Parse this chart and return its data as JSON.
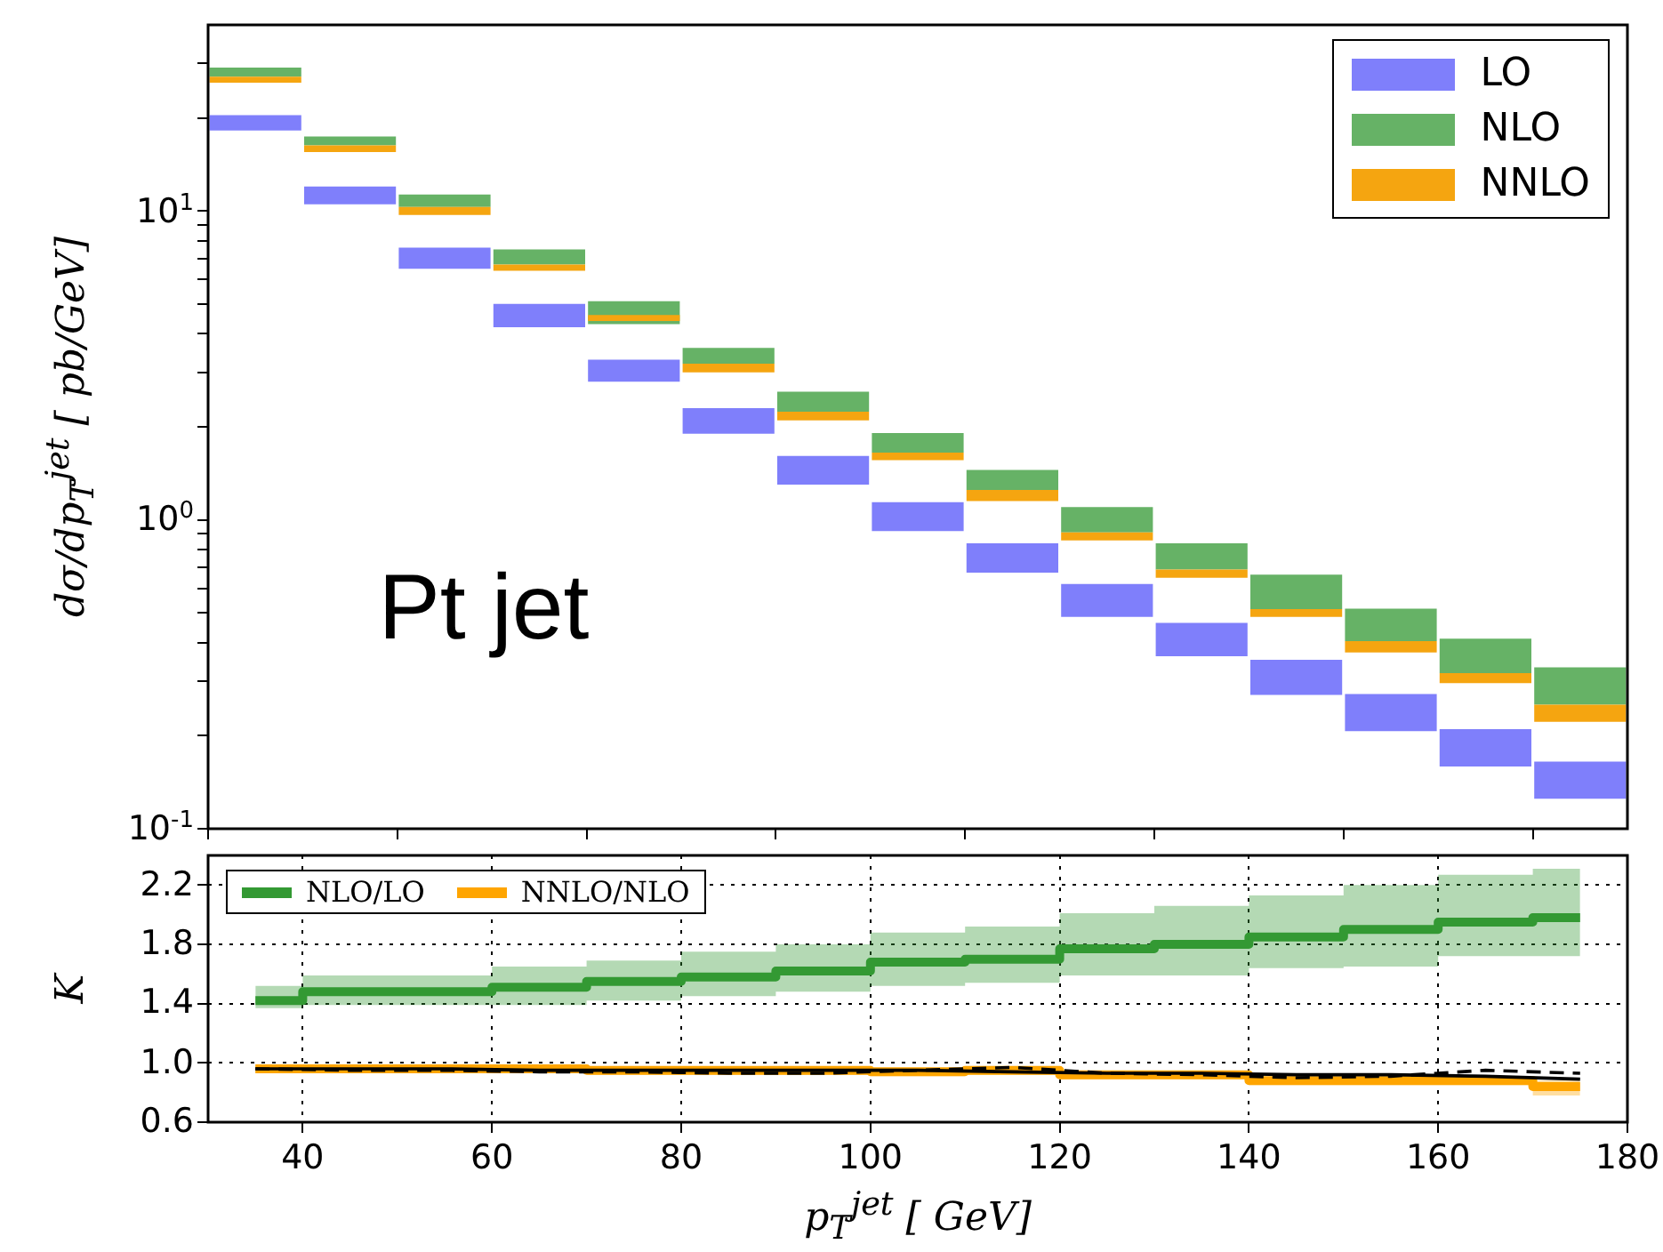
{
  "chart_data": [
    {
      "type": "bar",
      "log": true,
      "xlim": [
        30,
        180
      ],
      "xticks": [
        40,
        60,
        80,
        100,
        120,
        140,
        160,
        180
      ],
      "tick_labels": "y",
      "ylim": [
        0.1,
        40
      ],
      "yticks": [
        {
          "value": 0.1,
          "label": "10$^{-1}$"
        },
        {
          "value": 0.2,
          "label": null
        },
        {
          "value": 0.3,
          "label": null
        },
        {
          "value": 0.4,
          "label": null
        },
        {
          "value": 0.5,
          "label": null
        },
        {
          "value": 0.6,
          "label": null
        },
        {
          "value": 0.7,
          "label": null
        },
        {
          "value": 0.8,
          "label": null
        },
        {
          "value": 0.9,
          "label": null
        },
        {
          "value": 1,
          "label": "10$^{0}$"
        },
        {
          "value": 2,
          "label": null
        },
        {
          "value": 3,
          "label": null
        },
        {
          "value": 4,
          "label": null
        },
        {
          "value": 5,
          "label": null
        },
        {
          "value": 6,
          "label": null
        },
        {
          "value": 7,
          "label": null
        },
        {
          "value": 8,
          "label": null
        },
        {
          "value": 9,
          "label": null
        },
        {
          "value": 10,
          "label": "10$^{1}$"
        },
        {
          "value": 20,
          "label": null
        },
        {
          "value": 30,
          "label": null
        }
      ],
      "ylabel": "dσ/dp$_{T}$$^{jet}$ [ pb/GeV]",
      "legend": "top right",
      "annotations": [
        "Pt jet"
      ],
      "x": [
        35,
        45,
        55,
        65,
        75,
        85,
        95,
        105,
        115,
        125,
        135,
        145,
        155,
        165,
        175
      ],
      "series": [
        {
          "name": "LO",
          "color": "#7f7ffb",
          "base": [
            18.2,
            10.5,
            6.5,
            4.2,
            2.8,
            1.9,
            1.3,
            0.92,
            0.675,
            0.485,
            0.362,
            0.271,
            0.207,
            0.159,
            0.125
          ],
          "values": [
            2.2,
            1.5,
            1.1,
            0.8,
            0.5,
            0.4,
            0.31,
            0.22,
            0.165,
            0.135,
            0.102,
            0.081,
            0.066,
            0.051,
            0.04
          ]
        },
        {
          "name": "NLO",
          "color": "#66b266",
          "base": [
            27.2,
            16.3,
            10.3,
            6.7,
            4.3,
            3.2,
            2.24,
            1.65,
            1.25,
            0.91,
            0.69,
            0.514,
            0.405,
            0.319,
            0.252
          ],
          "values": [
            1.9,
            1.1,
            1.0,
            0.8,
            0.8,
            0.4,
            0.36,
            0.26,
            0.2,
            0.19,
            0.15,
            0.15,
            0.111,
            0.093,
            0.081
          ]
        },
        {
          "name": "NNLO",
          "color": "#f5a510",
          "base": [
            26.0,
            15.5,
            9.7,
            6.4,
            4.4,
            3.0,
            2.1,
            1.56,
            1.15,
            0.857,
            0.649,
            0.485,
            0.372,
            0.296,
            0.222
          ],
          "values": [
            1.2,
            0.8,
            0.6,
            0.3,
            0.2,
            0.2,
            0.14,
            0.09,
            0.1,
            0.053,
            0.041,
            0.029,
            0.033,
            0.023,
            0.03
          ]
        }
      ]
    },
    {
      "type": "step",
      "xlim": [
        30,
        180
      ],
      "xticks": [
        40,
        60,
        80,
        100,
        120,
        140,
        160,
        180
      ],
      "ylim": [
        0.6,
        2.4
      ],
      "yticks": [
        0.6,
        {
          "value": 1,
          "label": "1.0"
        },
        1.4,
        1.8,
        2.2
      ],
      "grid": true,
      "xlabel": "p$_{T}$$^{jet}$ [ GeV]",
      "ylabel": "K",
      "legend": "top left",
      "x": [
        35,
        45,
        55,
        65,
        75,
        85,
        95,
        105,
        115,
        125,
        135,
        145,
        155,
        165,
        175
      ],
      "series": [
        {
          "name": "NLO/LO",
          "color": "#339933",
          "values": [
            1.42,
            1.48,
            1.48,
            1.51,
            1.55,
            1.58,
            1.62,
            1.68,
            1.7,
            1.77,
            1.8,
            1.85,
            1.9,
            1.95,
            1.98
          ],
          "lower": [
            1.37,
            1.39,
            1.39,
            1.39,
            1.42,
            1.45,
            1.48,
            1.52,
            1.54,
            1.59,
            1.59,
            1.64,
            1.65,
            1.72,
            1.72
          ],
          "upper": [
            1.52,
            1.59,
            1.59,
            1.65,
            1.69,
            1.75,
            1.8,
            1.88,
            1.92,
            2.01,
            2.06,
            2.13,
            2.2,
            2.27,
            2.31
          ]
        },
        {
          "name": "NNLO/NLO",
          "color": "#ffa500",
          "values": [
            0.96,
            0.96,
            0.96,
            0.96,
            0.95,
            0.95,
            0.95,
            0.94,
            0.95,
            0.92,
            0.92,
            0.88,
            0.88,
            0.88,
            0.84
          ],
          "lower": [
            0.93,
            0.93,
            0.93,
            0.93,
            0.92,
            0.92,
            0.92,
            0.91,
            0.92,
            0.89,
            0.89,
            0.85,
            0.85,
            0.85,
            0.78
          ],
          "upper": [
            0.98,
            0.98,
            0.98,
            0.98,
            0.97,
            0.97,
            0.97,
            0.96,
            0.97,
            0.94,
            0.94,
            0.9,
            0.9,
            0.9,
            0.88
          ]
        },
        {
          "type": "line",
          "color": "#000000",
          "line_style": "solid",
          "values": [
            0.96,
            0.96,
            0.96,
            0.95,
            0.95,
            0.95,
            0.95,
            0.95,
            0.94,
            0.93,
            0.93,
            0.92,
            0.92,
            0.91,
            0.89
          ]
        },
        {
          "type": "line",
          "color": "#000000",
          "line_style": "dashed",
          "values": [
            0.96,
            0.95,
            0.95,
            0.94,
            0.94,
            0.93,
            0.93,
            0.95,
            0.97,
            0.93,
            0.92,
            0.9,
            0.91,
            0.95,
            0.93
          ]
        }
      ]
    }
  ]
}
